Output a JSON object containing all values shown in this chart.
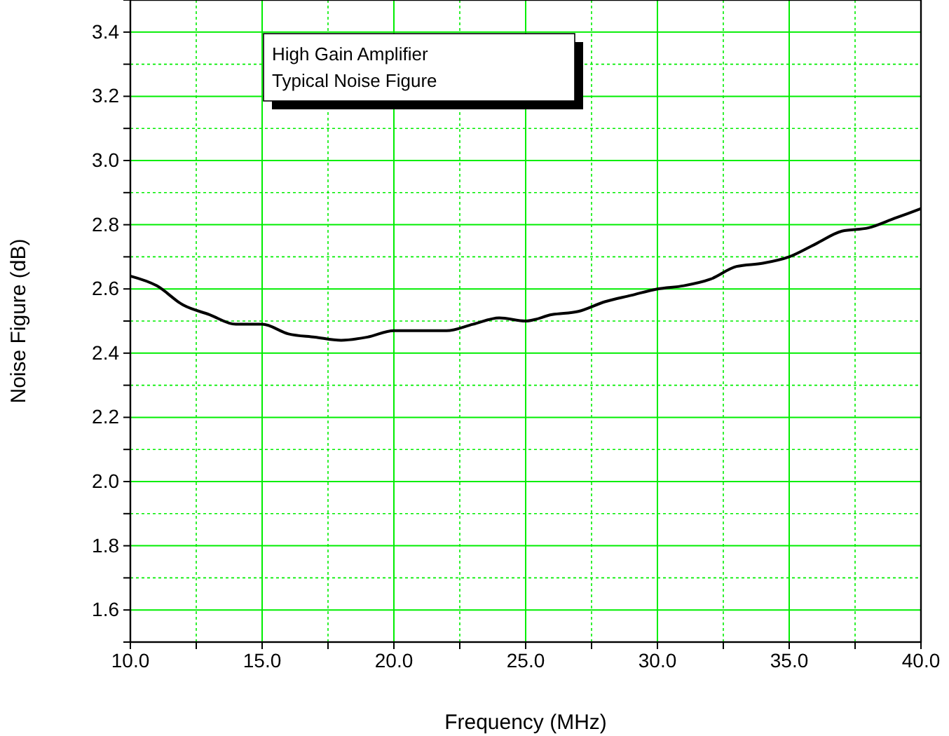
{
  "chart_data": {
    "type": "line",
    "title": "High Gain Amplifier",
    "subtitle": "Typical Noise Figure",
    "xlabel": "Frequency (MHz)",
    "ylabel": "Noise Figure (dB)",
    "x": [
      10,
      11,
      12,
      13,
      14,
      15,
      16,
      17,
      18,
      19,
      20,
      21,
      22,
      23,
      24,
      25,
      26,
      27,
      28,
      29,
      30,
      31,
      32,
      33,
      34,
      35,
      36,
      37,
      38,
      39,
      40
    ],
    "series": [
      {
        "color": "#000000",
        "values": [
          2.64,
          2.61,
          2.55,
          2.52,
          2.49,
          2.49,
          2.46,
          2.45,
          2.44,
          2.45,
          2.47,
          2.47,
          2.47,
          2.49,
          2.51,
          2.5,
          2.52,
          2.53,
          2.56,
          2.58,
          2.6,
          2.61,
          2.63,
          2.67,
          2.68,
          2.7,
          2.74,
          2.78,
          2.79,
          2.82,
          2.85
        ]
      }
    ],
    "xlim": [
      10,
      40
    ],
    "xticks": [
      {
        "value": 10,
        "label": "10.0"
      },
      {
        "value": 12.5,
        "label": null
      },
      {
        "value": 15,
        "label": "15.0"
      },
      {
        "value": 17.5,
        "label": null
      },
      {
        "value": 20,
        "label": "20.0"
      },
      {
        "value": 22.5,
        "label": null
      },
      {
        "value": 25,
        "label": "25.0"
      },
      {
        "value": 27.5,
        "label": null
      },
      {
        "value": 30,
        "label": "30.0"
      },
      {
        "value": 32.5,
        "label": null
      },
      {
        "value": 35,
        "label": "35.0"
      },
      {
        "value": 37.5,
        "label": null
      },
      {
        "value": 40,
        "label": "40.0"
      }
    ],
    "ylim": [
      1.5,
      3.5
    ],
    "yticks": [
      {
        "value": 1.5,
        "label": null
      },
      1.6,
      {
        "value": 1.7,
        "label": null
      },
      1.8,
      {
        "value": 1.9,
        "label": null
      },
      {
        "value": 2.0,
        "label": "2.0"
      },
      {
        "value": 2.1,
        "label": null
      },
      2.2,
      {
        "value": 2.3,
        "label": null
      },
      2.4,
      {
        "value": 2.5,
        "label": null
      },
      2.6,
      {
        "value": 2.7,
        "label": null
      },
      2.8,
      {
        "value": 2.9,
        "label": null
      },
      {
        "value": 3.0,
        "label": "3.0"
      },
      {
        "value": 3.1,
        "label": null
      },
      3.2,
      {
        "value": 3.3,
        "label": null
      },
      3.4
    ],
    "grid": true,
    "marker": "none",
    "line_style": "solid"
  }
}
